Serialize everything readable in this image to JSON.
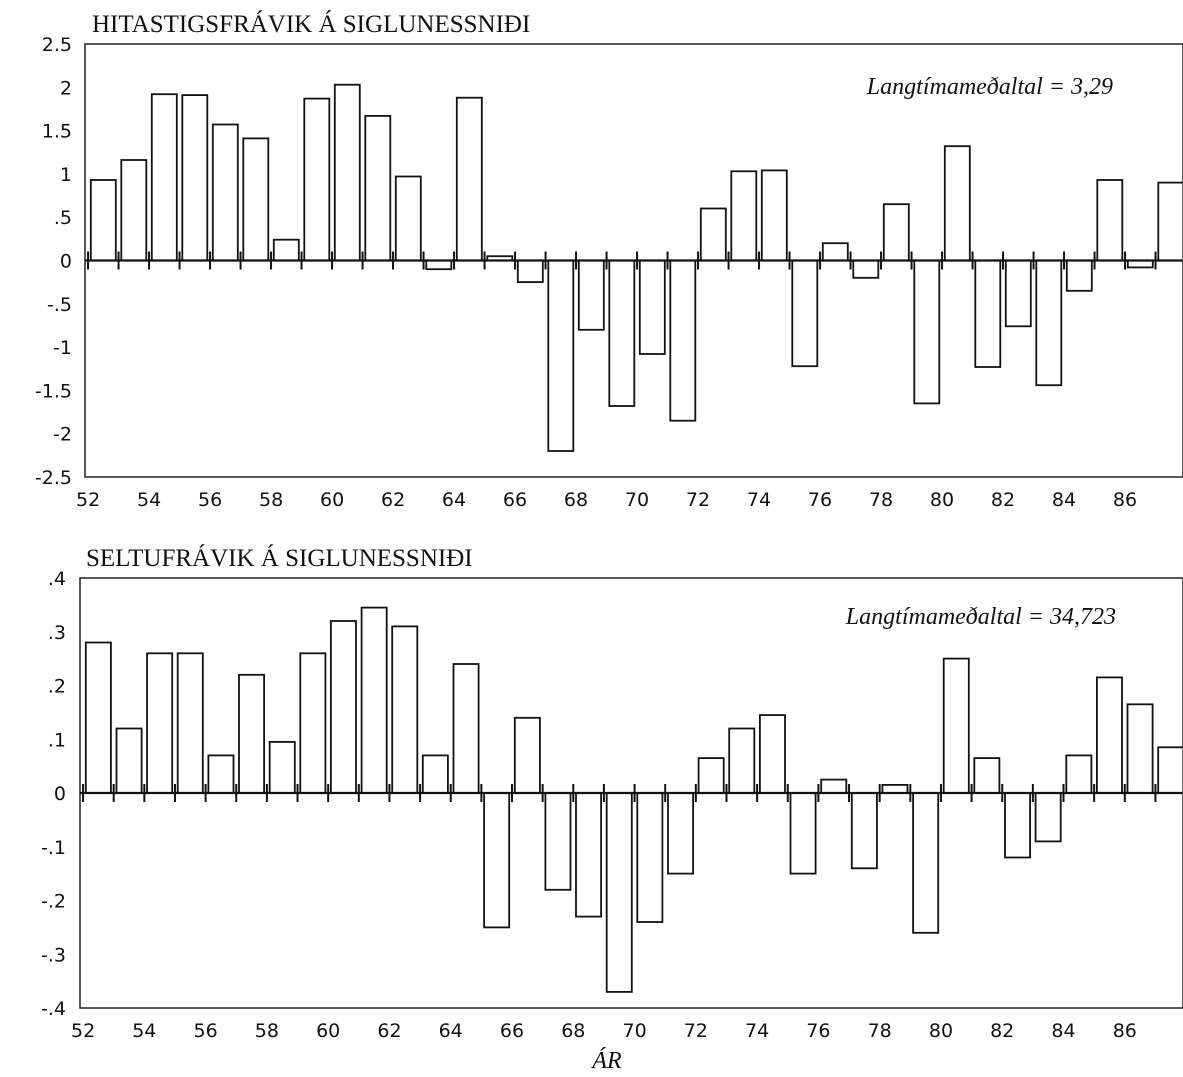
{
  "chart_data": [
    {
      "type": "bar",
      "title": "HITASTIGSFRÁVIK Á SIGLUNESSNIÐI",
      "annotation": "Langtímameðaltal = 3,29",
      "xlabel": "",
      "ylabel": "",
      "x": [
        52,
        53,
        54,
        55,
        56,
        57,
        58,
        59,
        60,
        61,
        62,
        63,
        64,
        65,
        66,
        67,
        68,
        69,
        70,
        71,
        72,
        73,
        74,
        75,
        76,
        77,
        78,
        79,
        80,
        81,
        82,
        83,
        84,
        85,
        86,
        87
      ],
      "values": [
        0.93,
        1.16,
        1.92,
        1.91,
        1.57,
        1.41,
        0.24,
        1.87,
        2.03,
        1.67,
        0.97,
        -0.1,
        1.88,
        0.05,
        -0.25,
        -2.2,
        -0.8,
        -1.68,
        -1.08,
        -1.85,
        0.6,
        1.03,
        1.04,
        -1.22,
        0.2,
        -0.2,
        0.65,
        -1.65,
        1.32,
        -1.23,
        -0.76,
        -1.44,
        -0.35,
        0.93,
        -0.08,
        0.9
      ],
      "xticks": [
        "52",
        "54",
        "56",
        "58",
        "60",
        "62",
        "64",
        "66",
        "68",
        "70",
        "72",
        "74",
        "76",
        "78",
        "80",
        "82",
        "84",
        "86"
      ],
      "yticks": [
        "2.5",
        "2",
        "1.5",
        "1",
        ".5",
        "0",
        "-.5",
        "-1",
        "-1.5",
        "-2",
        "-2.5"
      ],
      "ylim": [
        -2.5,
        2.5
      ],
      "xlim": [
        51.9,
        87.9
      ],
      "grid": false
    },
    {
      "type": "bar",
      "title": "SELTUFRÁVIK Á SIGLUNESSNIÐI",
      "annotation": "Langtímameðaltal = 34,723",
      "xlabel": "ÁR",
      "ylabel": "",
      "x": [
        52,
        53,
        54,
        55,
        56,
        57,
        58,
        59,
        60,
        61,
        62,
        63,
        64,
        65,
        66,
        67,
        68,
        69,
        70,
        71,
        72,
        73,
        74,
        75,
        76,
        77,
        78,
        79,
        80,
        81,
        82,
        83,
        84,
        85,
        86,
        87
      ],
      "values": [
        0.28,
        0.12,
        0.26,
        0.26,
        0.07,
        0.22,
        0.095,
        0.26,
        0.32,
        0.345,
        0.31,
        0.07,
        0.24,
        -0.25,
        0.14,
        -0.18,
        -0.23,
        -0.37,
        -0.24,
        -0.15,
        0.065,
        0.12,
        0.145,
        -0.15,
        0.025,
        -0.14,
        0.015,
        -0.26,
        0.25,
        0.065,
        -0.12,
        -0.09,
        0.07,
        0.215,
        0.165,
        0.085
      ],
      "xticks": [
        "52",
        "54",
        "56",
        "58",
        "60",
        "62",
        "64",
        "66",
        "68",
        "70",
        "72",
        "74",
        "76",
        "78",
        "80",
        "82",
        "84",
        "86"
      ],
      "yticks": [
        ".4",
        ".3",
        ".2",
        ".1",
        "0",
        "-.1",
        "-.2",
        "-.3",
        "-.4"
      ],
      "ylim": [
        -0.4,
        0.4
      ],
      "xlim": [
        51.9,
        87.9
      ],
      "grid": false
    }
  ]
}
